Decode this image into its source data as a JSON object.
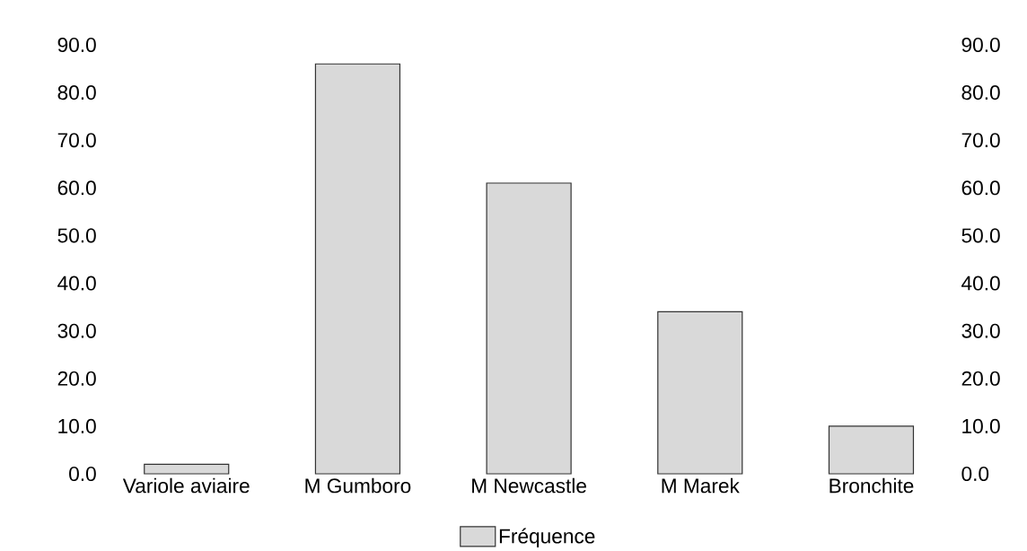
{
  "chart_data": {
    "type": "bar",
    "categories": [
      "Variole aviaire",
      "M Gumboro",
      "M Newcastle",
      "M Marek",
      "Bronchite"
    ],
    "series": [
      {
        "name": "Fréquence",
        "color": "#d9d9d9",
        "values": [
          2,
          86,
          61,
          34,
          10
        ]
      }
    ],
    "ylim": [
      0,
      90
    ],
    "yticks": [
      {
        "value": 0,
        "label": "0.0"
      },
      {
        "value": 10,
        "label": "10.0"
      },
      {
        "value": 20,
        "label": "20.0"
      },
      {
        "value": 30,
        "label": "30.0"
      },
      {
        "value": 40,
        "label": "40.0"
      },
      {
        "value": 50,
        "label": "50.0"
      },
      {
        "value": 60,
        "label": "60.0"
      },
      {
        "value": 70,
        "label": "70.0"
      },
      {
        "value": 80,
        "label": "80.0"
      },
      {
        "value": 90,
        "label": "90.0"
      }
    ],
    "y2lim": [
      0,
      90
    ],
    "y2ticks": [
      {
        "value": 0,
        "label": "0.0"
      },
      {
        "value": 10,
        "label": "10.0"
      },
      {
        "value": 20,
        "label": "20.0"
      },
      {
        "value": 30,
        "label": "30.0"
      },
      {
        "value": 40,
        "label": "40.0"
      },
      {
        "value": 50,
        "label": "50.0"
      },
      {
        "value": 60,
        "label": "60.0"
      },
      {
        "value": 70,
        "label": "70.0"
      },
      {
        "value": 80,
        "label": "80.0"
      },
      {
        "value": 90,
        "label": "90.0"
      }
    ],
    "legend": "bottom"
  }
}
